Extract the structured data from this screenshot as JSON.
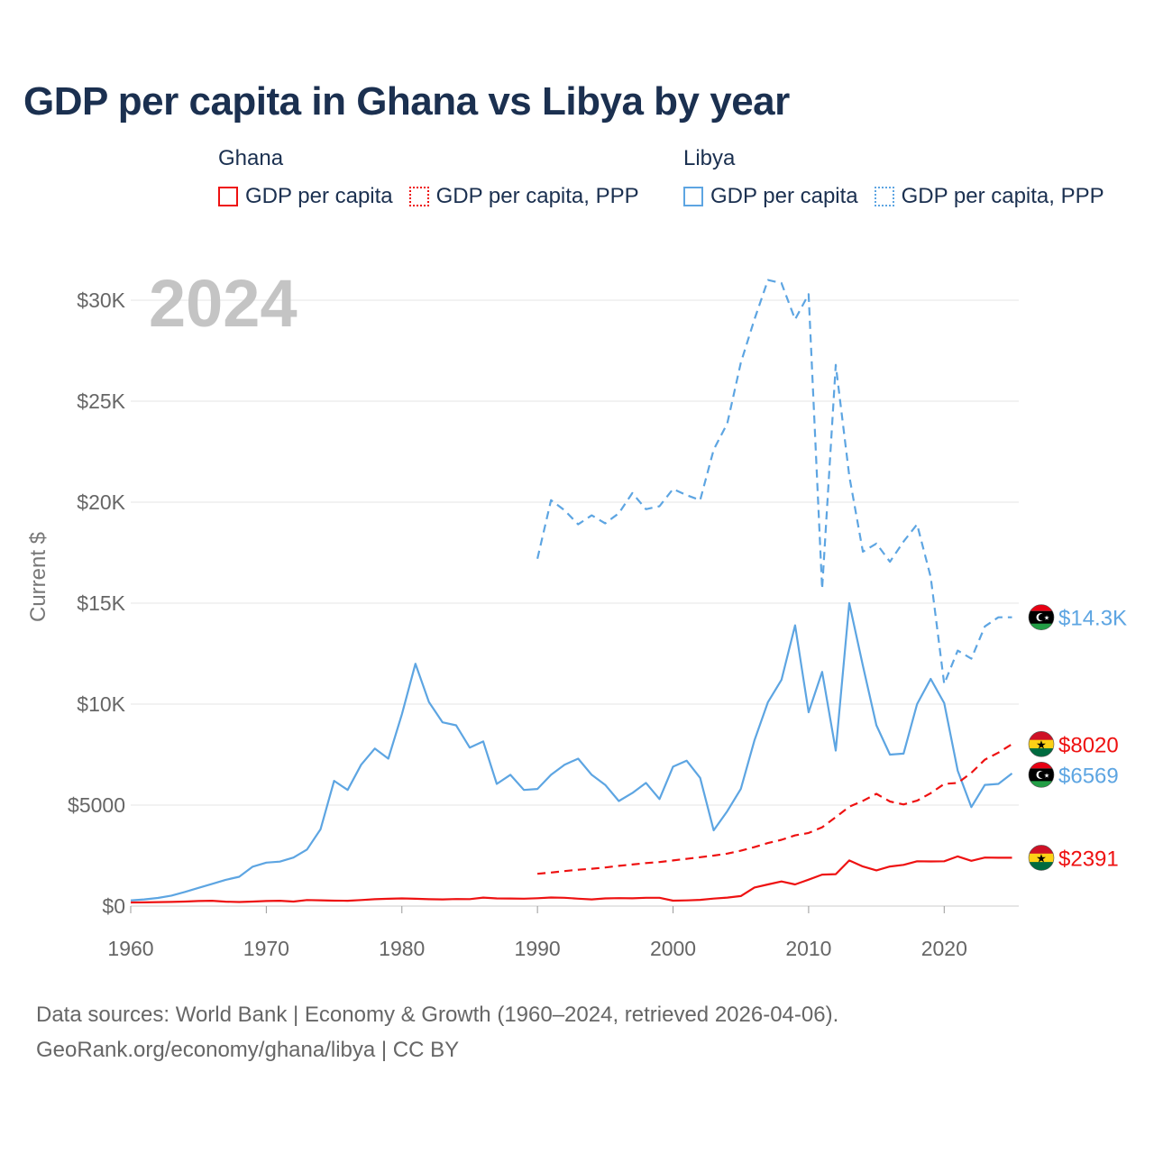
{
  "title": "GDP per capita in Ghana vs Libya by year",
  "legend": {
    "groups": [
      {
        "name": "Ghana",
        "color": "#ee1111",
        "items": [
          {
            "label": "GDP per capita",
            "style": "solid"
          },
          {
            "label": "GDP per capita, PPP",
            "style": "dotted"
          }
        ]
      },
      {
        "name": "Libya",
        "color": "#5da5e2",
        "items": [
          {
            "label": "GDP per capita",
            "style": "solid"
          },
          {
            "label": "GDP per capita, PPP",
            "style": "dotted"
          }
        ]
      }
    ]
  },
  "footer": {
    "line1": "Data sources: World Bank | Economy & Growth (1960–2024, retrieved 2026-04-06).",
    "line2": "GeoRank.org/economy/ghana/libya | CC BY"
  },
  "chart_data": {
    "type": "line",
    "title": "GDP per capita in Ghana vs Libya by year",
    "year_watermark": "2024",
    "ylabel": "Current $",
    "xlabel": "",
    "xlim": [
      1960,
      2024
    ],
    "ylim": [
      0,
      30000
    ],
    "x_ticks": [
      1960,
      1970,
      1980,
      1990,
      2000,
      2010,
      2020
    ],
    "y_ticks": [
      {
        "value": 0,
        "label": "$0"
      },
      {
        "value": 5000,
        "label": "$5000"
      },
      {
        "value": 10000,
        "label": "$10K"
      },
      {
        "value": 15000,
        "label": "$15K"
      },
      {
        "value": 20000,
        "label": "$20K"
      },
      {
        "value": 25000,
        "label": "$25K"
      },
      {
        "value": 30000,
        "label": "$30K"
      }
    ],
    "grid": true,
    "series": [
      {
        "name": "Libya GDP per capita",
        "country": "Libya",
        "color": "#5da5e2",
        "dash": "solid",
        "end_label": "$6569",
        "points": [
          [
            1960,
            280
          ],
          [
            1961,
            330
          ],
          [
            1962,
            400
          ],
          [
            1963,
            520
          ],
          [
            1964,
            700
          ],
          [
            1965,
            900
          ],
          [
            1966,
            1100
          ],
          [
            1967,
            1300
          ],
          [
            1968,
            1450
          ],
          [
            1969,
            1950
          ],
          [
            1970,
            2150
          ],
          [
            1971,
            2200
          ],
          [
            1972,
            2400
          ],
          [
            1973,
            2800
          ],
          [
            1974,
            3800
          ],
          [
            1975,
            6200
          ],
          [
            1976,
            5750
          ],
          [
            1977,
            7000
          ],
          [
            1978,
            7800
          ],
          [
            1979,
            7300
          ],
          [
            1980,
            9500
          ],
          [
            1981,
            12000
          ],
          [
            1982,
            10100
          ],
          [
            1983,
            9100
          ],
          [
            1984,
            8950
          ],
          [
            1985,
            7850
          ],
          [
            1986,
            8150
          ],
          [
            1987,
            6050
          ],
          [
            1988,
            6500
          ],
          [
            1989,
            5750
          ],
          [
            1990,
            5800
          ],
          [
            1991,
            6500
          ],
          [
            1992,
            7000
          ],
          [
            1993,
            7300
          ],
          [
            1994,
            6500
          ],
          [
            1995,
            6000
          ],
          [
            1996,
            5200
          ],
          [
            1997,
            5600
          ],
          [
            1998,
            6100
          ],
          [
            1999,
            5300
          ],
          [
            2000,
            6900
          ],
          [
            2001,
            7200
          ],
          [
            2002,
            6350
          ],
          [
            2003,
            3750
          ],
          [
            2004,
            4700
          ],
          [
            2005,
            5800
          ],
          [
            2006,
            8200
          ],
          [
            2007,
            10100
          ],
          [
            2008,
            11200
          ],
          [
            2009,
            13900
          ],
          [
            2010,
            9600
          ],
          [
            2011,
            11600
          ],
          [
            2012,
            7700
          ],
          [
            2013,
            15000
          ],
          [
            2014,
            11900
          ],
          [
            2015,
            8950
          ],
          [
            2016,
            7500
          ],
          [
            2017,
            7550
          ],
          [
            2018,
            10000
          ],
          [
            2019,
            11250
          ],
          [
            2020,
            10050
          ],
          [
            2021,
            6700
          ],
          [
            2022,
            4900
          ],
          [
            2023,
            6000
          ],
          [
            2024,
            6050
          ],
          [
            2025,
            6569
          ]
        ]
      },
      {
        "name": "Libya GDP per capita, PPP",
        "country": "Libya",
        "color": "#5da5e2",
        "dash": "dashed",
        "end_label": "$14.3K",
        "points": [
          [
            1990,
            17200
          ],
          [
            1991,
            20100
          ],
          [
            1992,
            19600
          ],
          [
            1993,
            18900
          ],
          [
            1994,
            19350
          ],
          [
            1995,
            18950
          ],
          [
            1996,
            19450
          ],
          [
            1997,
            20450
          ],
          [
            1998,
            19650
          ],
          [
            1999,
            19800
          ],
          [
            2000,
            20650
          ],
          [
            2001,
            20350
          ],
          [
            2002,
            20100
          ],
          [
            2003,
            22600
          ],
          [
            2004,
            23900
          ],
          [
            2005,
            26900
          ],
          [
            2006,
            29050
          ],
          [
            2007,
            31000
          ],
          [
            2008,
            30850
          ],
          [
            2009,
            29050
          ],
          [
            2010,
            30300
          ],
          [
            2011,
            15700
          ],
          [
            2012,
            26800
          ],
          [
            2013,
            21300
          ],
          [
            2014,
            17550
          ],
          [
            2015,
            17950
          ],
          [
            2016,
            17050
          ],
          [
            2017,
            18050
          ],
          [
            2018,
            18900
          ],
          [
            2019,
            16300
          ],
          [
            2020,
            11000
          ],
          [
            2021,
            12650
          ],
          [
            2022,
            12250
          ],
          [
            2023,
            13850
          ],
          [
            2024,
            14300
          ],
          [
            2025,
            14300
          ]
        ]
      },
      {
        "name": "Ghana GDP per capita",
        "country": "Ghana",
        "color": "#ee1111",
        "dash": "solid",
        "end_label": "$2391",
        "points": [
          [
            1960,
            180
          ],
          [
            1961,
            185
          ],
          [
            1962,
            195
          ],
          [
            1963,
            205
          ],
          [
            1964,
            225
          ],
          [
            1965,
            250
          ],
          [
            1966,
            265
          ],
          [
            1967,
            220
          ],
          [
            1968,
            200
          ],
          [
            1969,
            225
          ],
          [
            1970,
            250
          ],
          [
            1971,
            265
          ],
          [
            1972,
            225
          ],
          [
            1973,
            300
          ],
          [
            1974,
            285
          ],
          [
            1975,
            270
          ],
          [
            1976,
            265
          ],
          [
            1977,
            300
          ],
          [
            1978,
            340
          ],
          [
            1979,
            360
          ],
          [
            1980,
            380
          ],
          [
            1981,
            360
          ],
          [
            1982,
            340
          ],
          [
            1983,
            330
          ],
          [
            1984,
            350
          ],
          [
            1985,
            345
          ],
          [
            1986,
            420
          ],
          [
            1987,
            380
          ],
          [
            1988,
            375
          ],
          [
            1989,
            365
          ],
          [
            1990,
            390
          ],
          [
            1991,
            425
          ],
          [
            1992,
            410
          ],
          [
            1993,
            365
          ],
          [
            1994,
            330
          ],
          [
            1995,
            380
          ],
          [
            1996,
            395
          ],
          [
            1997,
            385
          ],
          [
            1998,
            410
          ],
          [
            1999,
            410
          ],
          [
            2000,
            270
          ],
          [
            2001,
            280
          ],
          [
            2002,
            310
          ],
          [
            2003,
            370
          ],
          [
            2004,
            420
          ],
          [
            2005,
            495
          ],
          [
            2006,
            920
          ],
          [
            2007,
            1070
          ],
          [
            2008,
            1220
          ],
          [
            2009,
            1070
          ],
          [
            2010,
            1310
          ],
          [
            2011,
            1560
          ],
          [
            2012,
            1580
          ],
          [
            2013,
            2260
          ],
          [
            2014,
            1960
          ],
          [
            2015,
            1770
          ],
          [
            2016,
            1960
          ],
          [
            2017,
            2040
          ],
          [
            2018,
            2220
          ],
          [
            2019,
            2210
          ],
          [
            2020,
            2220
          ],
          [
            2021,
            2460
          ],
          [
            2022,
            2240
          ],
          [
            2023,
            2400
          ],
          [
            2024,
            2391
          ],
          [
            2025,
            2391
          ]
        ]
      },
      {
        "name": "Ghana GDP per capita, PPP",
        "country": "Ghana",
        "color": "#ee1111",
        "dash": "dashed",
        "end_label": "$8020",
        "points": [
          [
            1990,
            1600
          ],
          [
            1991,
            1660
          ],
          [
            1992,
            1730
          ],
          [
            1993,
            1800
          ],
          [
            1994,
            1850
          ],
          [
            1995,
            1910
          ],
          [
            1996,
            1990
          ],
          [
            1997,
            2060
          ],
          [
            1998,
            2130
          ],
          [
            1999,
            2180
          ],
          [
            2000,
            2260
          ],
          [
            2001,
            2340
          ],
          [
            2002,
            2420
          ],
          [
            2003,
            2500
          ],
          [
            2004,
            2600
          ],
          [
            2005,
            2740
          ],
          [
            2006,
            2920
          ],
          [
            2007,
            3120
          ],
          [
            2008,
            3280
          ],
          [
            2009,
            3500
          ],
          [
            2010,
            3620
          ],
          [
            2011,
            3900
          ],
          [
            2012,
            4400
          ],
          [
            2013,
            4920
          ],
          [
            2014,
            5210
          ],
          [
            2015,
            5560
          ],
          [
            2016,
            5180
          ],
          [
            2017,
            5030
          ],
          [
            2018,
            5220
          ],
          [
            2019,
            5590
          ],
          [
            2020,
            6050
          ],
          [
            2021,
            6100
          ],
          [
            2022,
            6600
          ],
          [
            2023,
            7250
          ],
          [
            2024,
            7600
          ],
          [
            2025,
            8020
          ]
        ]
      }
    ]
  }
}
